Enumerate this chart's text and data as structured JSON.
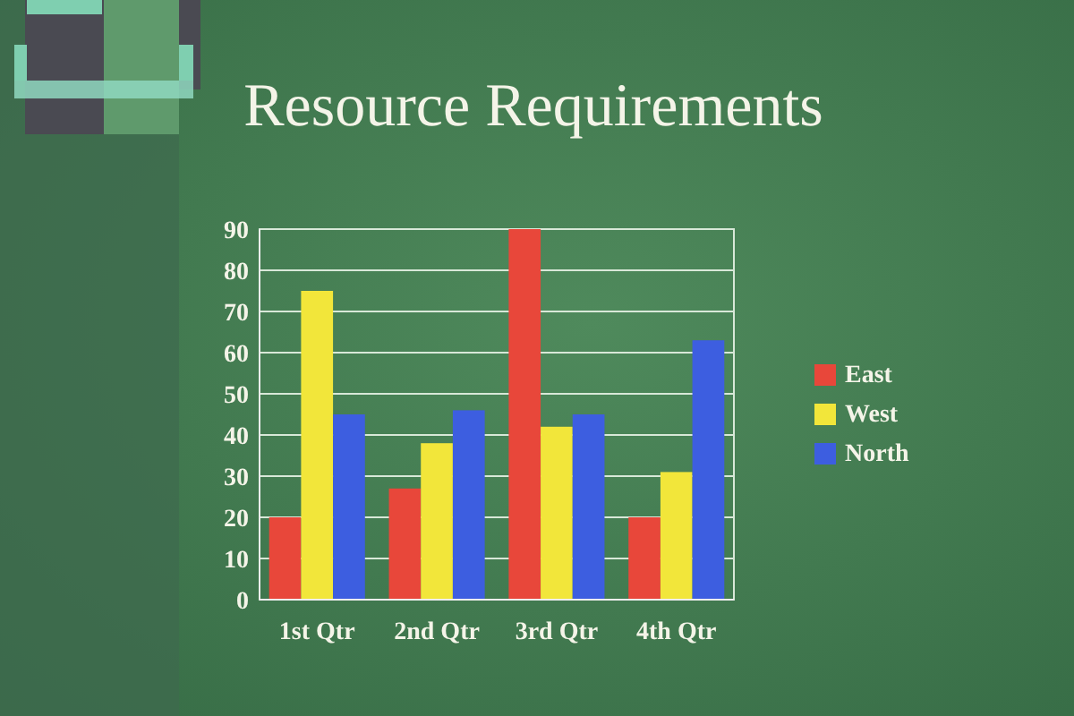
{
  "chart_data": {
    "type": "bar",
    "title": "Resource Requirements",
    "categories": [
      "1st Qtr",
      "2nd Qtr",
      "3rd Qtr",
      "4th Qtr"
    ],
    "series": [
      {
        "name": "East",
        "color": "#e8473a",
        "values": [
          20,
          27,
          90,
          20
        ]
      },
      {
        "name": "West",
        "color": "#f2e63a",
        "values": [
          75,
          38,
          42,
          31
        ]
      },
      {
        "name": "North",
        "color": "#3d5ee0",
        "values": [
          45,
          46,
          45,
          63
        ]
      }
    ],
    "ylim": [
      0,
      90
    ],
    "yticks": [
      0,
      10,
      20,
      30,
      40,
      50,
      60,
      70,
      80,
      90
    ],
    "grid": "y",
    "legend": "right"
  }
}
